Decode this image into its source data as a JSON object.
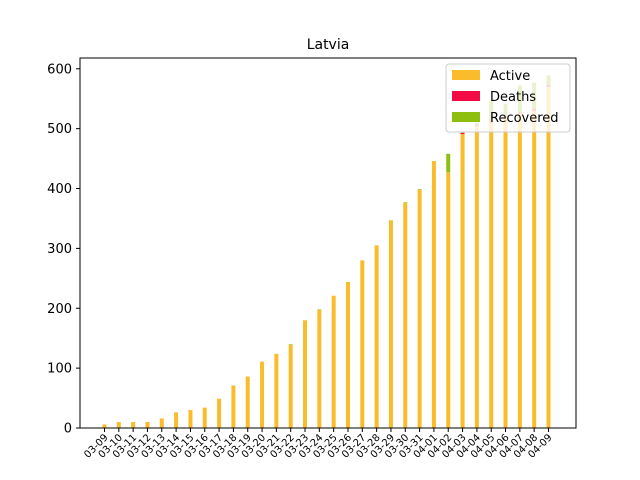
{
  "chart_data": {
    "type": "bar",
    "stacked": true,
    "title": "Latvia",
    "xlabel": "",
    "ylabel": "",
    "ylim": [
      0,
      618
    ],
    "yticks": [
      0,
      100,
      200,
      300,
      400,
      500,
      600
    ],
    "grid": false,
    "legend_position": "top-right",
    "categories": [
      "03-09",
      "03-10",
      "03-11",
      "03-12",
      "03-13",
      "03-14",
      "03-15",
      "03-16",
      "03-17",
      "03-18",
      "03-19",
      "03-20",
      "03-21",
      "03-22",
      "03-23",
      "03-24",
      "03-25",
      "03-26",
      "03-27",
      "03-28",
      "03-29",
      "03-30",
      "03-31",
      "04-01",
      "04-02",
      "04-03",
      "04-04",
      "04-05",
      "04-06",
      "04-07",
      "04-08",
      "04-09"
    ],
    "series": [
      {
        "name": "Active",
        "color": "#fbbc2c",
        "values": [
          6,
          10,
          10,
          10,
          16,
          26,
          30,
          34,
          49,
          71,
          86,
          111,
          124,
          139,
          180,
          197,
          221,
          244,
          280,
          305,
          347,
          376,
          398,
          446,
          427,
          491,
          505,
          510,
          520,
          525,
          530,
          570
        ]
      },
      {
        "name": "Deaths",
        "color": "#f20a42",
        "values": [
          0,
          0,
          0,
          0,
          0,
          0,
          0,
          0,
          0,
          0,
          0,
          0,
          0,
          0,
          0,
          0,
          0,
          0,
          0,
          0,
          0,
          0,
          0,
          0,
          0,
          2,
          2,
          2,
          2,
          2,
          3,
          3
        ]
      },
      {
        "name": "Recovered",
        "color": "#8cbf0e",
        "values": [
          0,
          0,
          0,
          0,
          0,
          0,
          0,
          0,
          0,
          0,
          0,
          0,
          0,
          1,
          0,
          1,
          0,
          0,
          0,
          0,
          0,
          1,
          1,
          0,
          31,
          1,
          3,
          35,
          20,
          45,
          44,
          16
        ]
      }
    ]
  }
}
